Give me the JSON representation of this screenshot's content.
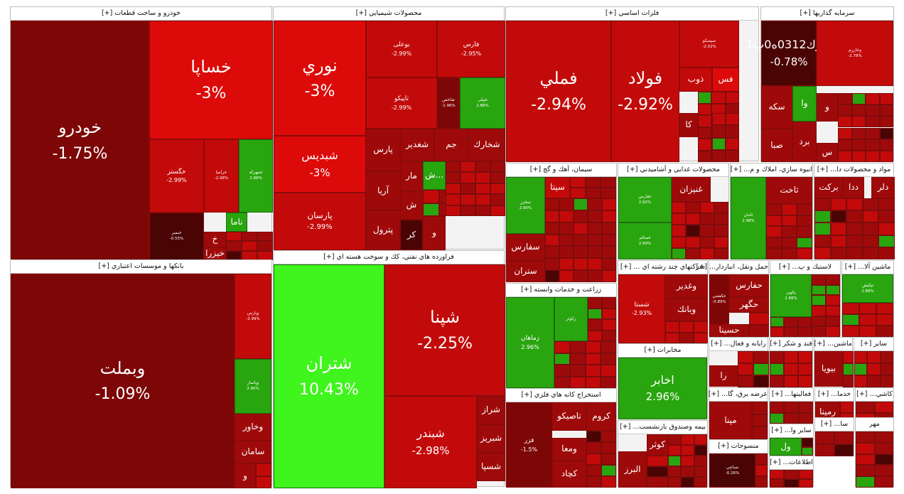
{
  "colors": {
    "deep_red": "#7d0606",
    "dark_red": "#9e0a0a",
    "red": "#c30a0a",
    "bright_red": "#dd0a0a",
    "darkest_red": "#4a0404",
    "green": "#29a50f",
    "bright_green": "#3ff51d",
    "dark_green": "#1c7a0a",
    "border": "#bcbcbc",
    "header_bg": "#ffffff"
  },
  "sectors": [
    {
      "id": "auto",
      "title": "خودرو و ساخت قطعات [+]",
      "tiles": [
        {
          "id": "khodro",
          "name": "خودرو",
          "pct": "-1.75%",
          "color": "deep_red"
        },
        {
          "id": "khsapa",
          "name": "خساپا",
          "pct": "-3%",
          "color": "bright_red"
        },
        {
          "id": "khegostar",
          "name": "خگستر",
          "pct": "-2.99%",
          "color": "red"
        },
        {
          "id": "khramia",
          "name": "خرامیا",
          "pct": "-2.98%",
          "color": "red"
        },
        {
          "id": "khmehvar",
          "name": "خمهرکه",
          "pct": "2.88%",
          "color": "green"
        },
        {
          "id": "khemhar",
          "name": "خیمیر",
          "pct": "-0.55%",
          "color": "darkest_red"
        },
        {
          "id": "nama",
          "name": "ناما",
          "pct": "",
          "color": "green"
        },
        {
          "id": "khe",
          "name": "خ",
          "pct": "",
          "color": "dark_red"
        },
        {
          "id": "khezra",
          "name": "خیزرا",
          "pct": "",
          "color": "dark_red"
        }
      ]
    },
    {
      "id": "chem",
      "title": "محصولات شيميايي [+]",
      "tiles": [
        {
          "id": "noori",
          "name": "نوري",
          "pct": "-3%",
          "color": "bright_red"
        },
        {
          "id": "shbandis",
          "name": "شبدیس",
          "pct": "-3%",
          "color": "bright_red"
        },
        {
          "id": "parsan",
          "name": "پارسان",
          "pct": "-2.99%",
          "color": "red"
        },
        {
          "id": "buali",
          "name": "بوعلی",
          "pct": "-2.99%",
          "color": "red"
        },
        {
          "id": "faris",
          "name": "فارس",
          "pct": "-2.95%",
          "color": "red"
        },
        {
          "id": "tapiko",
          "name": "تاپیکو",
          "pct": "-2.99%",
          "color": "red"
        },
        {
          "id": "shsakht",
          "name": "شاخص",
          "pct": "-1.96%",
          "color": "deep_red"
        },
        {
          "id": "shopli",
          "name": "شپلی",
          "pct": "2.88%",
          "color": "green"
        },
        {
          "id": "pars",
          "name": "پارس",
          "pct": "",
          "color": "dark_red"
        },
        {
          "id": "shaghadir",
          "name": "شغدير",
          "pct": "",
          "color": "dark_red"
        },
        {
          "id": "jam",
          "name": "جم",
          "pct": "",
          "color": "dark_red"
        },
        {
          "id": "shkharak",
          "name": "شخارك",
          "pct": "",
          "color": "dark_red"
        },
        {
          "id": "arya",
          "name": "آريا",
          "pct": "",
          "color": "dark_red"
        },
        {
          "id": "petrol",
          "name": "پترول",
          "pct": "",
          "color": "dark_red"
        },
        {
          "id": "mar",
          "name": "مار",
          "pct": "",
          "color": "dark_red"
        },
        {
          "id": "sh",
          "name": "ش",
          "pct": "",
          "color": "dark_red"
        },
        {
          "id": "shgreen",
          "name": "ش...",
          "pct": "",
          "color": "green"
        },
        {
          "id": "kr",
          "name": "كر",
          "pct": "",
          "color": "darkest_red"
        },
        {
          "id": "va",
          "name": "و",
          "pct": "",
          "color": "dark_red"
        }
      ]
    },
    {
      "id": "metal",
      "title": "فلزات اساسي [+]",
      "tiles": [
        {
          "id": "fameli",
          "name": "فملي",
          "pct": "-2.94%",
          "color": "red"
        },
        {
          "id": "foolad",
          "name": "فولاد",
          "pct": "-2.92%",
          "color": "red"
        },
        {
          "id": "sepahsko",
          "name": "سپسکو",
          "pct": "-2.02%",
          "color": "red"
        },
        {
          "id": "zob",
          "name": "ذوب",
          "pct": "",
          "color": "red"
        },
        {
          "id": "fs",
          "name": "فس",
          "pct": "",
          "color": "bright_red"
        },
        {
          "id": "ka",
          "name": "كا",
          "pct": "",
          "color": "dark_red"
        }
      ]
    },
    {
      "id": "invest",
      "title": "سرمايه گذاريها [+]",
      "tiles": [
        {
          "id": "serek",
          "name": "سرك0312ه0ب1",
          "pct": "-0.78%",
          "color": "darkest_red"
        },
        {
          "id": "vakharazm",
          "name": "وخارزم",
          "pct": "-2.78%",
          "color": "red"
        },
        {
          "id": "sakeh",
          "name": "سكه",
          "pct": "",
          "color": "dark_red"
        },
        {
          "id": "va1",
          "name": "وا",
          "pct": "",
          "color": "green"
        },
        {
          "id": "vo",
          "name": "و",
          "pct": "",
          "color": "dark_red"
        },
        {
          "id": "saba",
          "name": "صبا",
          "pct": "",
          "color": "dark_red"
        },
        {
          "id": "bard",
          "name": "برد",
          "pct": "",
          "color": "dark_red"
        },
        {
          "id": "sa",
          "name": "س",
          "pct": "",
          "color": "dark_red"
        }
      ]
    },
    {
      "id": "cement",
      "title": "سيمان، آهك و گچ [+]",
      "tiles": [
        {
          "id": "sefars",
          "name": "سفارس",
          "pct": "",
          "color": "dark_red"
        },
        {
          "id": "setran",
          "name": "ستران",
          "pct": "",
          "color": "dark_red"
        },
        {
          "id": "sita",
          "name": "سيتا",
          "pct": "",
          "color": "red"
        },
        {
          "id": "sekhzar",
          "name": "سخزر",
          "pct": "2.90%",
          "color": "green"
        }
      ]
    },
    {
      "id": "food",
      "title": "محصولات غذايي و آشاميدني [+]",
      "tiles": [
        {
          "id": "ghnizan",
          "name": "غنيزان",
          "pct": "",
          "color": "dark_red"
        },
        {
          "id": "ghfars",
          "name": "غفارس",
          "pct": "2.92%",
          "color": "green"
        },
        {
          "id": "ghsalam",
          "name": "غسالم",
          "pct": "2.99%",
          "color": "green"
        }
      ]
    },
    {
      "id": "mass",
      "title": "انبوه سازي، املاك و م... [+]",
      "tiles": [
        {
          "id": "saman",
          "name": "ثامان",
          "pct": "2.98%",
          "color": "green"
        },
        {
          "id": "tkht",
          "name": "ثاخت",
          "pct": "",
          "color": "dark_red"
        }
      ]
    },
    {
      "id": "material",
      "title": "مواد و محصولات دا... [+]",
      "tiles": [
        {
          "id": "barakat",
          "name": "بركت",
          "pct": "",
          "color": "dark_red"
        },
        {
          "id": "dda",
          "name": "ددا",
          "pct": "",
          "color": "dark_red"
        },
        {
          "id": "dlr",
          "name": "دلر",
          "pct": "",
          "color": "dark_red"
        }
      ]
    },
    {
      "id": "banks",
      "title": "بانكها و موسسات اعتباري [+]",
      "tiles": [
        {
          "id": "vbmelat",
          "name": "وبملت",
          "pct": "-1.09%",
          "color": "deep_red"
        },
        {
          "id": "vparis",
          "name": "وپارس",
          "pct": "-2.99%",
          "color": "red"
        },
        {
          "id": "vday",
          "name": "وپاسار",
          "pct": "2.90%",
          "color": "green"
        },
        {
          "id": "vkhavar",
          "name": "وخاور",
          "pct": "",
          "color": "dark_red"
        },
        {
          "id": "saman2",
          "name": "سامان",
          "pct": "",
          "color": "dark_red"
        },
        {
          "id": "vo2",
          "name": "و",
          "pct": "",
          "color": "dark_red"
        }
      ]
    },
    {
      "id": "oil",
      "title": "فراورده هاي نفتي، كك و سوخت هسته اي [+]",
      "tiles": [
        {
          "id": "shetran",
          "name": "شتران",
          "pct": "10.43%",
          "color": "bright_green"
        },
        {
          "id": "shpna",
          "name": "شپنا",
          "pct": "-2.25%",
          "color": "red"
        },
        {
          "id": "shbandar",
          "name": "شبندر",
          "pct": "-2.98%",
          "color": "red"
        },
        {
          "id": "shraz",
          "name": "شراز",
          "pct": "",
          "color": "dark_red"
        },
        {
          "id": "shbriz",
          "name": "شبريز",
          "pct": "",
          "color": "dark_red"
        },
        {
          "id": "shspa",
          "name": "شسپا",
          "pct": "",
          "color": "dark_red"
        }
      ]
    },
    {
      "id": "agri",
      "title": "زراعت و خدمات وابسته [+]",
      "tiles": [
        {
          "id": "zmahan",
          "name": "زماهان",
          "pct": "2.96%",
          "color": "green"
        },
        {
          "id": "zkosh",
          "name": "زكوثر",
          "pct": "",
          "color": "green"
        }
      ]
    },
    {
      "id": "mining",
      "title": "استخراج كانه هاي فلزي [+]",
      "tiles": [
        {
          "id": "fzer",
          "name": "فزر",
          "pct": "-1.5%",
          "color": "deep_red"
        },
        {
          "id": "tapiko2",
          "name": "تاصيكو",
          "pct": "",
          "color": "dark_red"
        },
        {
          "id": "krom",
          "name": "كروم",
          "pct": "",
          "color": "dark_red"
        },
        {
          "id": "vmela",
          "name": "ومعا",
          "pct": "",
          "color": "dark_red"
        },
        {
          "id": "kchad",
          "name": "كچاد",
          "pct": "",
          "color": "dark_red"
        }
      ]
    },
    {
      "id": "multi",
      "title": "شركتهاي چند رشته اي ... [+]",
      "tiles": [
        {
          "id": "shsta",
          "name": "شستا",
          "pct": "-2.93%",
          "color": "red"
        },
        {
          "id": "vghadir",
          "name": "وغدير",
          "pct": "",
          "color": "dark_red"
        },
        {
          "id": "vbank",
          "name": "وبانك",
          "pct": "",
          "color": "dark_red"
        }
      ]
    },
    {
      "id": "telecom",
      "title": "مخابرات [+]",
      "tiles": [
        {
          "id": "akhaber",
          "name": "اخابر",
          "pct": "2.96%",
          "color": "green"
        }
      ]
    },
    {
      "id": "insurance",
      "title": "بيمه وصندوق بازنشست... [+]",
      "tiles": [
        {
          "id": "alborz",
          "name": "البرز",
          "pct": "",
          "color": "dark_red"
        },
        {
          "id": "kosar",
          "name": "كوثر",
          "pct": "",
          "color": "dark_red"
        }
      ]
    },
    {
      "id": "transport",
      "title": "حمل ونقل، انباردار... [+]",
      "tiles": [
        {
          "id": "hfars",
          "name": "حفارس",
          "pct": "",
          "color": "dark_red"
        },
        {
          "id": "hgahr",
          "name": "حگهر",
          "pct": "",
          "color": "dark_red"
        },
        {
          "id": "hsina",
          "name": "حسينا",
          "pct": "",
          "color": "dark_red"
        },
        {
          "id": "hkeshti",
          "name": "حكشتي",
          "pct": "-0.89%",
          "color": "deep_red"
        }
      ]
    },
    {
      "id": "plastic",
      "title": "لاستيك و پ... [+]",
      "tiles": [
        {
          "id": "pkavir",
          "name": "پكوير",
          "pct": "2.88%",
          "color": "green"
        }
      ]
    },
    {
      "id": "machinery",
      "title": "ماشين آلا... [+]",
      "tiles": [
        {
          "id": "tpkesh",
          "name": "تپكيش",
          "pct": "2.88%",
          "color": "green"
        }
      ]
    },
    {
      "id": "textile",
      "title": "منسوجات [+]",
      "tiles": [
        {
          "id": "nkhazar",
          "name": "نساچي",
          "pct": "-0.26%",
          "color": "darkest_red"
        }
      ]
    },
    {
      "id": "sugar",
      "title": "قند و شكر [+]",
      "tiles": []
    },
    {
      "id": "electric",
      "title": "ماشين... [+]",
      "tiles": [
        {
          "id": "booyaa",
          "name": "بيويا",
          "pct": "",
          "color": "dark_red"
        }
      ]
    },
    {
      "id": "computers",
      "title": "رايانه و فعال... [+]",
      "tiles": [
        {
          "id": "ra",
          "name": "را",
          "pct": "",
          "color": "dark_red"
        }
      ]
    },
    {
      "id": "power",
      "title": "عرضه برق، گا... [+]",
      "tiles": [
        {
          "id": "mapna",
          "name": "مپنا",
          "pct": "",
          "color": "dark_red"
        }
      ]
    },
    {
      "id": "services",
      "title": "فعاليتها... [+]",
      "tiles": []
    },
    {
      "id": "services2",
      "title": "خدما... [+]",
      "tiles": [
        {
          "id": "rmina",
          "name": "رمينا",
          "pct": "",
          "color": "dark_red"
        }
      ]
    },
    {
      "id": "misc",
      "title": "ساير [+]",
      "tiles": []
    },
    {
      "id": "ceramic",
      "title": "كاشي... [+]",
      "tiles": []
    },
    {
      "id": "other",
      "title": "ساير وا... [+]",
      "tiles": [
        {
          "id": "vol",
          "name": "ول",
          "pct": "",
          "color": "green"
        }
      ]
    },
    {
      "id": "info",
      "title": "اطلاعات... [+]",
      "tiles": []
    },
    {
      "id": "medical",
      "title": "سا... [+]",
      "tiles": []
    },
    {
      "id": "mehr",
      "title": "مهر",
      "tiles": []
    }
  ]
}
